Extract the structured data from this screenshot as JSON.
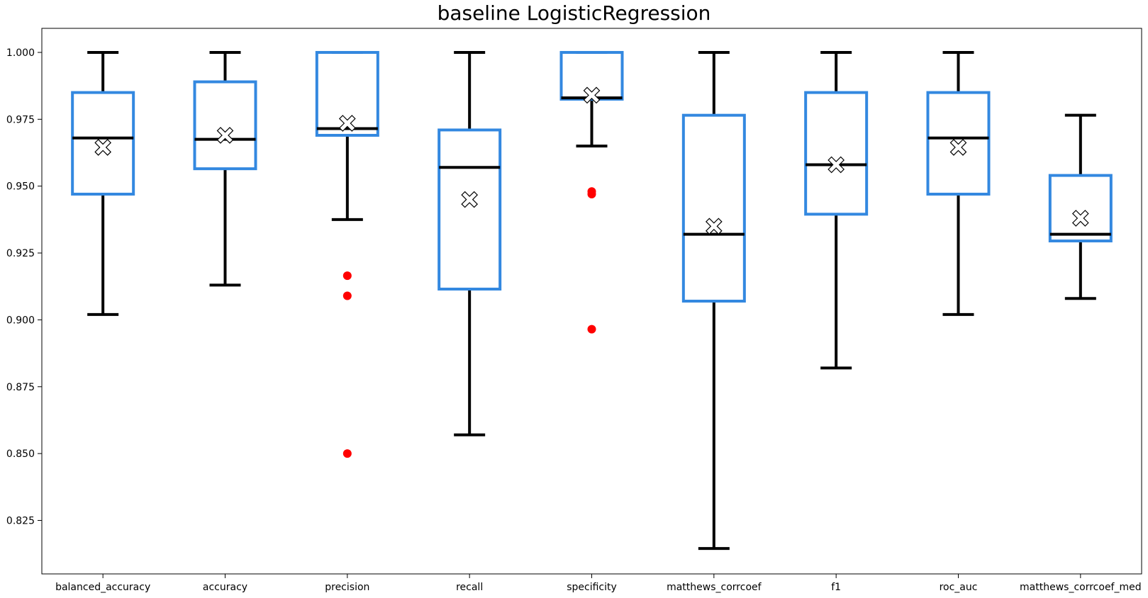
{
  "chart_data": {
    "type": "box",
    "title": "baseline LogisticRegression",
    "xlabel": "",
    "ylabel": "",
    "ylim": [
      0.805,
      1.009
    ],
    "yticks": [
      0.825,
      0.85,
      0.875,
      0.9,
      0.925,
      0.95,
      0.975,
      1.0
    ],
    "ytick_labels": [
      "0.825",
      "0.850",
      "0.875",
      "0.900",
      "0.925",
      "0.950",
      "0.975",
      "1.000"
    ],
    "grid": false,
    "colors": {
      "box": "#3388e0",
      "whisker": "#000000",
      "median": "#000000",
      "mean_marker_fill": "#ffffff",
      "outlier": "#ff0000"
    },
    "boxes": [
      {
        "category": "balanced_accuracy",
        "whislo": 0.902,
        "q1": 0.947,
        "med": 0.968,
        "q3": 0.985,
        "whishi": 1.0,
        "mean": 0.9645,
        "fliers": []
      },
      {
        "category": "accuracy",
        "whislo": 0.913,
        "q1": 0.9565,
        "med": 0.9675,
        "q3": 0.989,
        "whishi": 1.0,
        "mean": 0.969,
        "fliers": []
      },
      {
        "category": "precision",
        "whislo": 0.9375,
        "q1": 0.969,
        "med": 0.9715,
        "q3": 1.0,
        "whishi": 1.0,
        "mean": 0.9735,
        "fliers": [
          0.9165,
          0.909,
          0.85
        ]
      },
      {
        "category": "recall",
        "whislo": 0.857,
        "q1": 0.9115,
        "med": 0.957,
        "q3": 0.971,
        "whishi": 1.0,
        "mean": 0.945,
        "fliers": []
      },
      {
        "category": "specificity",
        "whislo": 0.965,
        "q1": 0.9825,
        "med": 0.983,
        "q3": 1.0,
        "whishi": 1.0,
        "mean": 0.984,
        "fliers": [
          0.948,
          0.947,
          0.8965
        ]
      },
      {
        "category": "matthews_corrcoef",
        "whislo": 0.8145,
        "q1": 0.907,
        "med": 0.932,
        "q3": 0.9765,
        "whishi": 1.0,
        "mean": 0.935,
        "fliers": []
      },
      {
        "category": "f1",
        "whislo": 0.882,
        "q1": 0.9395,
        "med": 0.958,
        "q3": 0.985,
        "whishi": 1.0,
        "mean": 0.958,
        "fliers": []
      },
      {
        "category": "roc_auc",
        "whislo": 0.902,
        "q1": 0.947,
        "med": 0.968,
        "q3": 0.985,
        "whishi": 1.0,
        "mean": 0.9645,
        "fliers": []
      },
      {
        "category": "matthews_corrcoef_med",
        "whislo": 0.908,
        "q1": 0.9295,
        "med": 0.932,
        "q3": 0.954,
        "whishi": 0.9765,
        "mean": 0.938,
        "fliers": []
      }
    ]
  }
}
